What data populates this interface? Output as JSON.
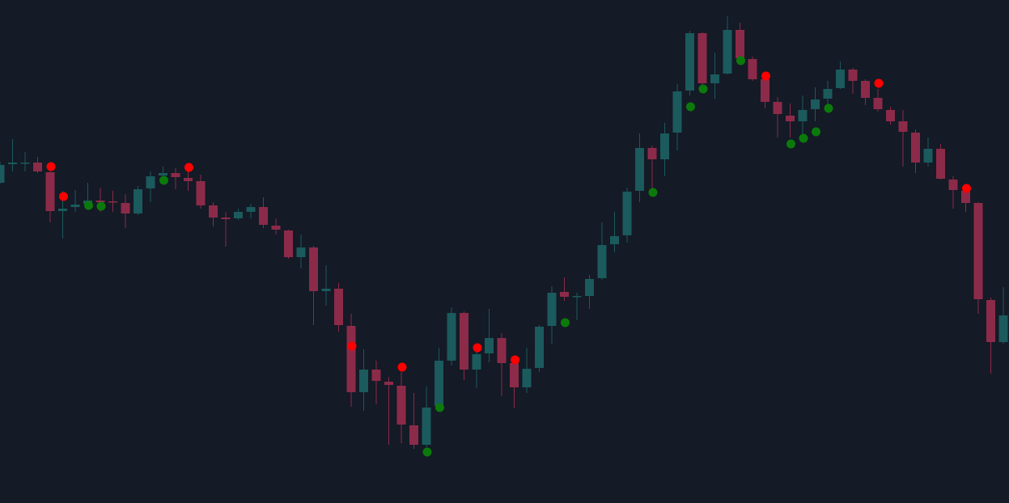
{
  "chart_data": {
    "type": "candlestick",
    "xlim": [
      0,
      80
    ],
    "ylim": [
      0,
      622
    ],
    "up_color": "#1b5a5d",
    "down_color": "#8c2b49",
    "open": [
      396,
      419,
      420,
      421,
      409,
      361,
      366,
      370,
      374,
      373,
      371,
      358,
      389,
      405,
      408,
      402,
      398,
      368,
      353,
      352,
      360,
      366,
      343,
      337,
      304,
      316,
      262,
      265,
      219,
      137,
      165,
      150,
      145,
      96,
      72,
      120,
      176,
      235,
      165,
      185,
      204,
      173,
      143,
      167,
      219,
      261,
      255,
      256,
      278,
      320,
      331,
      386,
      439,
      425,
      458,
      510,
      581,
      519,
      531,
      585,
      549,
      524,
      496,
      479,
      472,
      487,
      500,
      513,
      536,
      522,
      501,
      486,
      472,
      458,
      421,
      438,
      400,
      386,
      371,
      251,
      199
    ],
    "high": [
      422,
      450,
      434,
      428,
      410,
      386,
      387,
      396,
      390,
      386,
      382,
      392,
      410,
      416,
      414,
      410,
      406,
      372,
      360,
      364,
      370,
      378,
      352,
      338,
      332,
      318,
      294,
      272,
      234,
      190,
      176,
      156,
      162,
      136,
      144,
      192,
      242,
      237,
      194,
      240,
      210,
      182,
      192,
      220,
      268,
      279,
      260,
      282,
      347,
      360,
      390,
      457,
      442,
      470,
      518,
      584,
      582,
      557,
      602,
      594,
      552,
      530,
      502,
      494,
      504,
      514,
      522,
      546,
      538,
      524,
      512,
      490,
      486,
      462,
      452,
      444,
      404,
      392,
      372,
      254,
      267
    ],
    "low": [
      394,
      410,
      410,
      408,
      347,
      327,
      360,
      364,
      360,
      360,
      340,
      356,
      372,
      397,
      388,
      386,
      364,
      342,
      317,
      350,
      352,
      340,
      332,
      302,
      290,
      220,
      244,
      212,
      119,
      114,
      122,
      72,
      74,
      67,
      69,
      116,
      170,
      152,
      142,
      174,
      132,
      117,
      136,
      162,
      197,
      250,
      226,
      240,
      276,
      310,
      322,
      372,
      386,
      404,
      436,
      504,
      514,
      500,
      530,
      546,
      522,
      488,
      452,
      452,
      454,
      472,
      492,
      512,
      506,
      492,
      484,
      468,
      416,
      408,
      416,
      400,
      364,
      360,
      234,
      160,
      197
    ],
    "close": [
      418,
      421,
      421,
      410,
      361,
      364,
      369,
      374,
      372,
      372,
      358,
      388,
      404,
      408,
      403,
      398,
      368,
      353,
      351,
      360,
      366,
      344,
      338,
      304,
      316,
      262,
      265,
      220,
      137,
      165,
      151,
      146,
      97,
      72,
      118,
      176,
      235,
      165,
      184,
      204,
      173,
      143,
      166,
      218,
      260,
      255,
      256,
      277,
      319,
      330,
      385,
      439,
      425,
      457,
      509,
      581,
      519,
      530,
      585,
      550,
      524,
      496,
      481,
      472,
      486,
      499,
      512,
      536,
      522,
      501,
      487,
      472,
      459,
      421,
      438,
      401,
      387,
      371,
      252,
      199,
      232
    ],
    "signals": [
      {
        "name": "sell",
        "color": "#ff0000",
        "x": [
          4,
          5,
          15,
          28,
          32,
          38,
          41,
          61,
          70,
          77
        ],
        "values": [
          416,
          379,
          415,
          194,
          168,
          192,
          177,
          528,
          519,
          389
        ]
      },
      {
        "name": "buy",
        "color": "#0b7a0b",
        "x": [
          7,
          8,
          13,
          34,
          35,
          45,
          52,
          55,
          56,
          59,
          63,
          64,
          65,
          66
        ],
        "values": [
          368,
          367,
          399,
          63,
          118,
          223,
          384,
          490,
          512,
          547,
          444,
          451,
          459,
          488
        ]
      }
    ]
  }
}
